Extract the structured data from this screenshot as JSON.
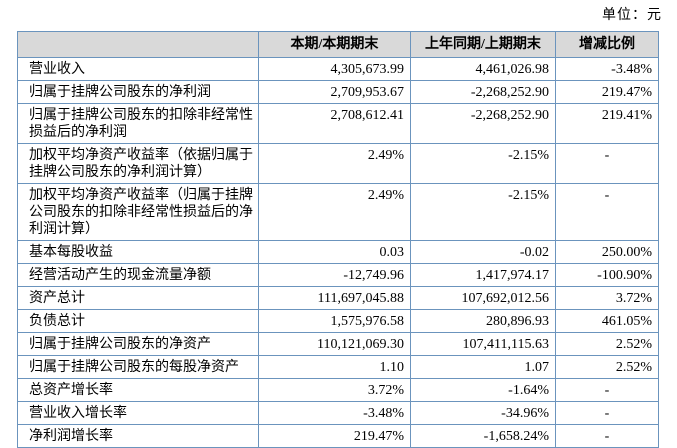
{
  "unit_label": "单位：元",
  "table": {
    "border_color": "#6b94bd",
    "header_bg": "#d9d9d9",
    "headers": [
      "",
      "本期/本期期末",
      "上年同期/上期期末",
      "增减比例"
    ],
    "rows": [
      {
        "label": "营业收入",
        "current": "4,305,673.99",
        "prior": "4,461,026.98",
        "change": "-3.48%"
      },
      {
        "label": "归属于挂牌公司股东的净利润",
        "current": "2,709,953.67",
        "prior": "-2,268,252.90",
        "change": "219.47%"
      },
      {
        "label": "归属于挂牌公司股东的扣除非经常性损益后的净利润",
        "current": "2,708,612.41",
        "prior": "-2,268,252.90",
        "change": "219.41%"
      },
      {
        "label": "加权平均净资产收益率（依据归属于挂牌公司股东的净利润计算）",
        "current": "2.49%",
        "prior": "-2.15%",
        "change": "-"
      },
      {
        "label": "加权平均净资产收益率（归属于挂牌公司股东的扣除非经常性损益后的净利润计算）",
        "current": "2.49%",
        "prior": "-2.15%",
        "change": "-"
      },
      {
        "label": "基本每股收益",
        "current": "0.03",
        "prior": "-0.02",
        "change": "250.00%"
      },
      {
        "label": "经营活动产生的现金流量净额",
        "current": "-12,749.96",
        "prior": "1,417,974.17",
        "change": "-100.90%"
      },
      {
        "label": "资产总计",
        "current": "111,697,045.88",
        "prior": "107,692,012.56",
        "change": "3.72%"
      },
      {
        "label": "负债总计",
        "current": "1,575,976.58",
        "prior": "280,896.93",
        "change": "461.05%"
      },
      {
        "label": "归属于挂牌公司股东的净资产",
        "current": "110,121,069.30",
        "prior": "107,411,115.63",
        "change": "2.52%"
      },
      {
        "label": "归属于挂牌公司股东的每股净资产",
        "current": "1.10",
        "prior": "1.07",
        "change": "2.52%"
      },
      {
        "label": "总资产增长率",
        "current": "3.72%",
        "prior": "-1.64%",
        "change": "-"
      },
      {
        "label": "营业收入增长率",
        "current": "-3.48%",
        "prior": "-34.96%",
        "change": "-"
      },
      {
        "label": "净利润增长率",
        "current": "219.47%",
        "prior": "-1,658.24%",
        "change": "-"
      }
    ]
  }
}
